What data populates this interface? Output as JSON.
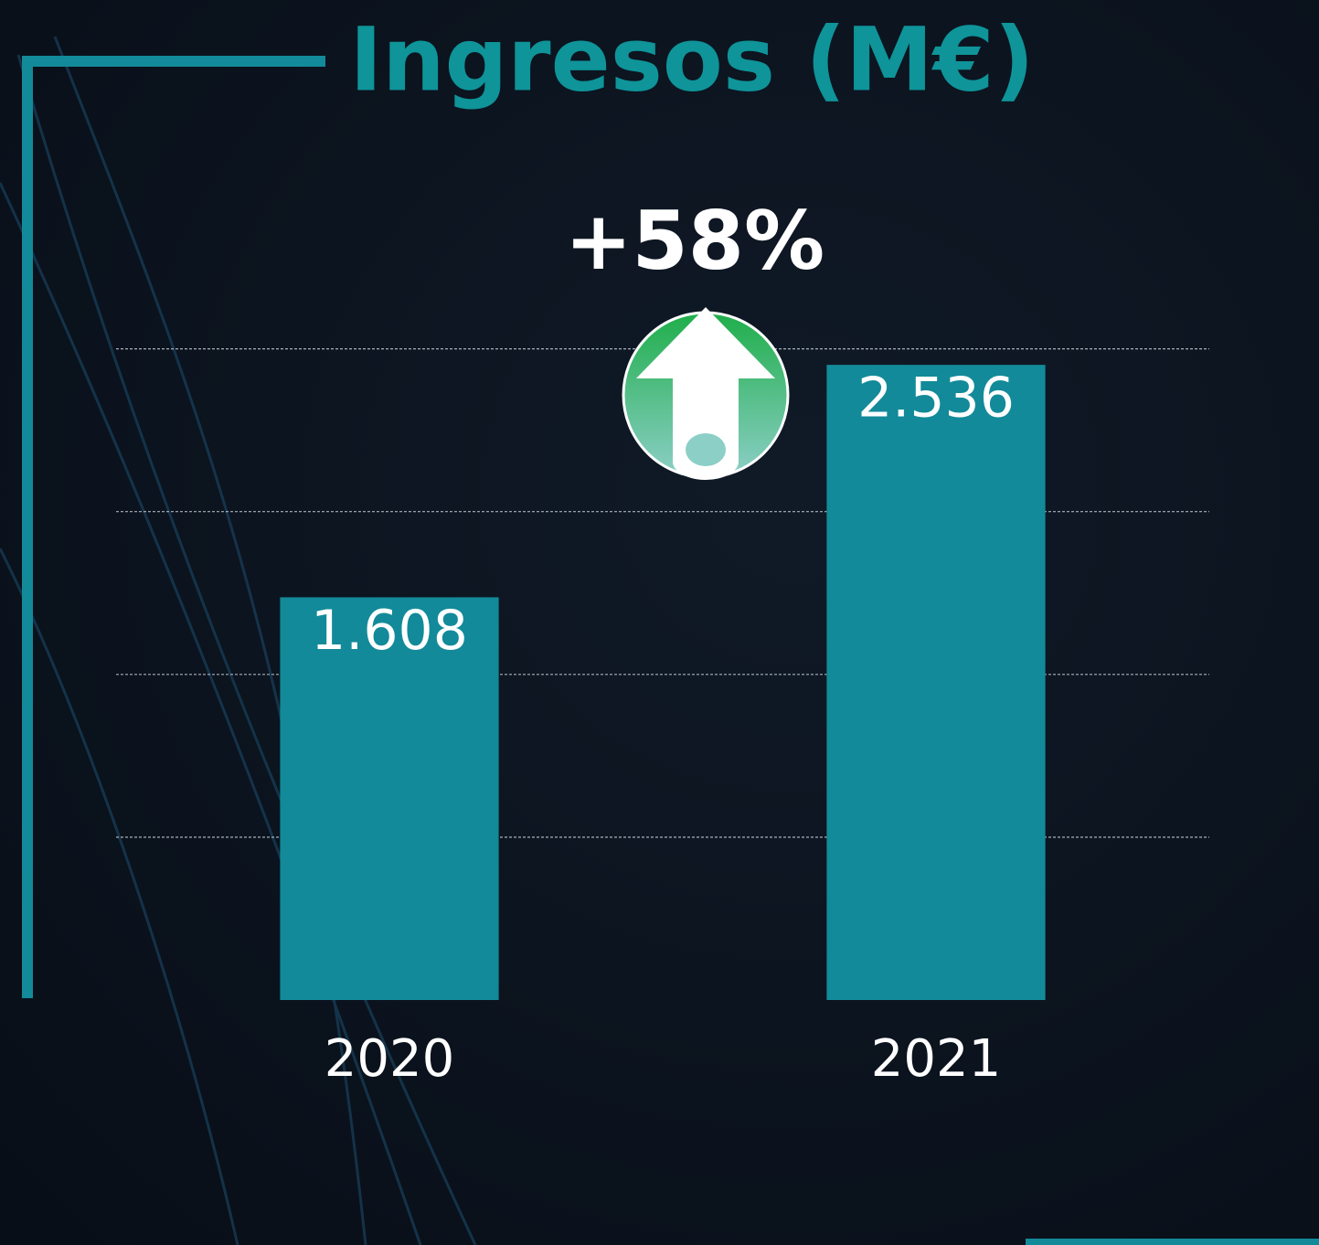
{
  "chart_data": {
    "type": "bar",
    "title": "Ingresos (M€)",
    "categories": [
      "2020",
      "2021"
    ],
    "values": [
      1608,
      2536
    ],
    "value_labels": [
      "1.608",
      "2.536"
    ],
    "color": "#128a99",
    "annotation": "+58%",
    "ylim": [
      0,
      3000
    ],
    "yticks": [
      650,
      1300,
      1950,
      2600
    ],
    "grid": true,
    "ytick_labels": false
  }
}
